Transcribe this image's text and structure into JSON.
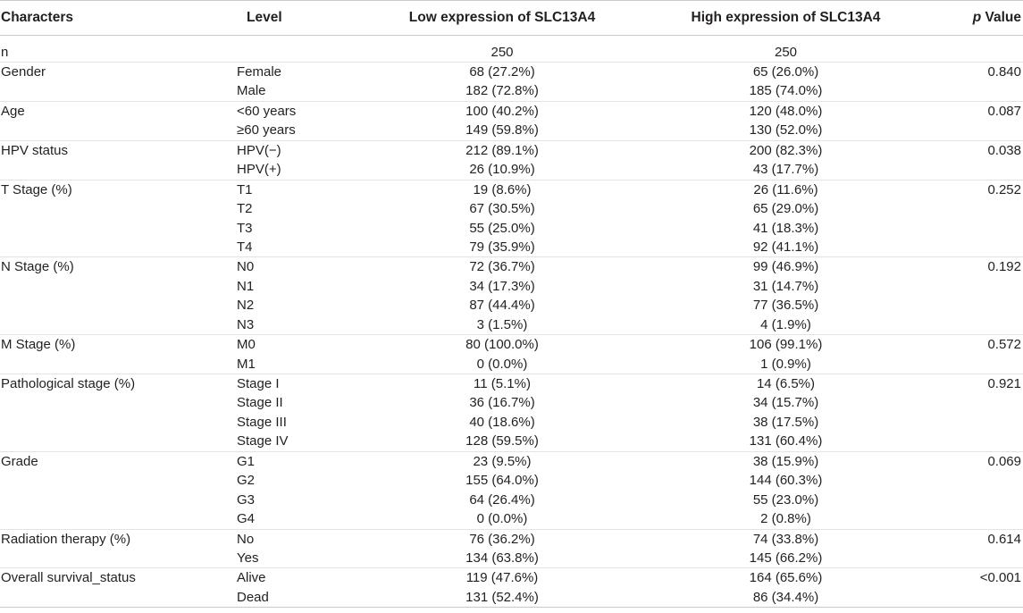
{
  "table": {
    "headers": {
      "characters": "Characters",
      "level": "Level",
      "low": "Low expression of SLC13A4",
      "high": "High expression of SLC13A4",
      "p_italic": "p",
      "p_rest": " Value"
    },
    "rows": [
      {
        "char": "n",
        "level": "",
        "low": "250",
        "high": "250",
        "p": ""
      },
      {
        "char": "Gender",
        "level": "Female",
        "low": "68 (27.2%)",
        "high": "65 (26.0%)",
        "p": "0.840"
      },
      {
        "char": "",
        "level": "Male",
        "low": "182 (72.8%)",
        "high": "185 (74.0%)",
        "p": ""
      },
      {
        "char": "Age",
        "level": "<60 years",
        "low": "100 (40.2%)",
        "high": "120 (48.0%)",
        "p": "0.087"
      },
      {
        "char": "",
        "level": "≥60 years",
        "low": "149 (59.8%)",
        "high": "130 (52.0%)",
        "p": ""
      },
      {
        "char": "HPV status",
        "level": "HPV(−)",
        "low": "212 (89.1%)",
        "high": "200 (82.3%)",
        "p": "0.038"
      },
      {
        "char": "",
        "level": "HPV(+)",
        "low": "26 (10.9%)",
        "high": "43 (17.7%)",
        "p": ""
      },
      {
        "char": "T Stage (%)",
        "level": "T1",
        "low": "19 (8.6%)",
        "high": "26 (11.6%)",
        "p": "0.252"
      },
      {
        "char": "",
        "level": "T2",
        "low": "67 (30.5%)",
        "high": "65 (29.0%)",
        "p": ""
      },
      {
        "char": "",
        "level": "T3",
        "low": "55 (25.0%)",
        "high": "41 (18.3%)",
        "p": ""
      },
      {
        "char": "",
        "level": "T4",
        "low": "79 (35.9%)",
        "high": "92 (41.1%)",
        "p": ""
      },
      {
        "char": "N Stage (%)",
        "level": "N0",
        "low": "72 (36.7%)",
        "high": "99 (46.9%)",
        "p": "0.192"
      },
      {
        "char": "",
        "level": "N1",
        "low": "34 (17.3%)",
        "high": "31 (14.7%)",
        "p": ""
      },
      {
        "char": "",
        "level": "N2",
        "low": "87 (44.4%)",
        "high": "77 (36.5%)",
        "p": ""
      },
      {
        "char": "",
        "level": "N3",
        "low": "3 (1.5%)",
        "high": "4 (1.9%)",
        "p": ""
      },
      {
        "char": "M Stage (%)",
        "level": "M0",
        "low": "80 (100.0%)",
        "high": "106 (99.1%)",
        "p": "0.572"
      },
      {
        "char": "",
        "level": "M1",
        "low": "0 (0.0%)",
        "high": "1 (0.9%)",
        "p": ""
      },
      {
        "char": "Pathological stage (%)",
        "level": "Stage I",
        "low": "11 (5.1%)",
        "high": "14 (6.5%)",
        "p": "0.921"
      },
      {
        "char": "",
        "level": "Stage II",
        "low": "36 (16.7%)",
        "high": "34 (15.7%)",
        "p": ""
      },
      {
        "char": "",
        "level": "Stage III",
        "low": "40 (18.6%)",
        "high": "38 (17.5%)",
        "p": ""
      },
      {
        "char": "",
        "level": "Stage IV",
        "low": "128 (59.5%)",
        "high": "131 (60.4%)",
        "p": ""
      },
      {
        "char": "Grade",
        "level": "G1",
        "low": "23 (9.5%)",
        "high": "38 (15.9%)",
        "p": "0.069"
      },
      {
        "char": "",
        "level": "G2",
        "low": "155 (64.0%)",
        "high": "144 (60.3%)",
        "p": ""
      },
      {
        "char": "",
        "level": "G3",
        "low": "64 (26.4%)",
        "high": "55 (23.0%)",
        "p": ""
      },
      {
        "char": "",
        "level": "G4",
        "low": "0 (0.0%)",
        "high": "2 (0.8%)",
        "p": ""
      },
      {
        "char": "Radiation therapy (%)",
        "level": "No",
        "low": "76 (36.2%)",
        "high": "74 (33.8%)",
        "p": "0.614"
      },
      {
        "char": "",
        "level": "Yes",
        "low": "134 (63.8%)",
        "high": "145 (66.2%)",
        "p": ""
      },
      {
        "char": "Overall survival_status",
        "level": "Alive",
        "low": "119 (47.6%)",
        "high": "164 (65.6%)",
        "p": "<0.001"
      },
      {
        "char": "",
        "level": "Dead",
        "low": "131 (52.4%)",
        "high": "86 (34.4%)",
        "p": ""
      }
    ]
  }
}
